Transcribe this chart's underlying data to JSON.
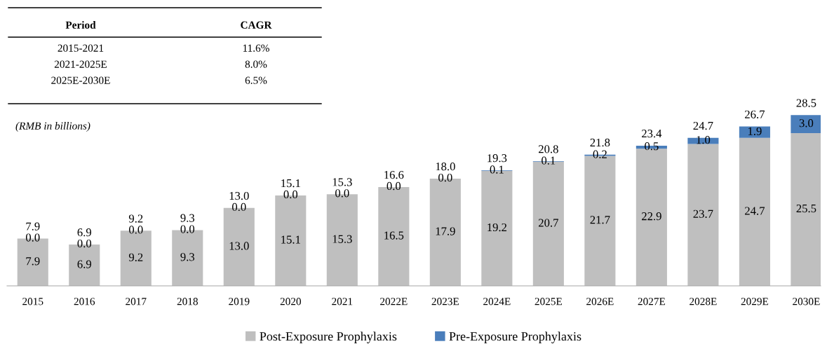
{
  "chart_data": {
    "type": "bar",
    "stacked": true,
    "legend": "bottom",
    "grid": false,
    "categories": [
      "2015",
      "2016",
      "2017",
      "2018",
      "2019",
      "2020",
      "2021",
      "2022E",
      "2023E",
      "2024E",
      "2025E",
      "2026E",
      "2027E",
      "2028E",
      "2029E",
      "2030E"
    ],
    "series": [
      {
        "name": "Post-Exposure Prophylaxis",
        "color": "#bfbfbf",
        "values": [
          7.9,
          6.9,
          9.2,
          9.3,
          13.0,
          15.1,
          15.3,
          16.5,
          17.9,
          19.2,
          20.7,
          21.7,
          22.9,
          23.7,
          24.7,
          25.5
        ],
        "value_labels": [
          "7.9",
          "6.9",
          "9.2",
          "9.3",
          "13.0",
          "15.1",
          "15.3",
          "16.5",
          "17.9",
          "19.2",
          "20.7",
          "21.7",
          "22.9",
          "23.7",
          "24.7",
          "25.5"
        ]
      },
      {
        "name": "Pre-Exposure Prophylaxis",
        "color": "#4a7ebb",
        "values": [
          0.0,
          0.0,
          0.0,
          0.0,
          0.0,
          0.0,
          0.0,
          0.0,
          0.0,
          0.1,
          0.1,
          0.2,
          0.5,
          1.0,
          1.9,
          3.0
        ],
        "value_labels": [
          "0.0",
          "0.0",
          "0.0",
          "0.0",
          "0.0",
          "0.0",
          "0.0",
          "0.0",
          "0.0",
          "0.1",
          "0.1",
          "0.2",
          "0.5",
          "1.0",
          "1.9",
          "3.0"
        ]
      }
    ],
    "totals": [
      "7.9",
      "6.9",
      "9.2",
      "9.3",
      "13.0",
      "15.1",
      "15.3",
      "16.6",
      "18.0",
      "19.3",
      "20.8",
      "21.8",
      "23.4",
      "24.7",
      "26.7",
      "28.5"
    ],
    "annotations": [
      "Period",
      "CAGR",
      "2015-2021",
      "11.6%",
      "2021-2025E",
      "8.0%",
      "2025E-2030E",
      "6.5%",
      "(RMB in billions)"
    ]
  }
}
